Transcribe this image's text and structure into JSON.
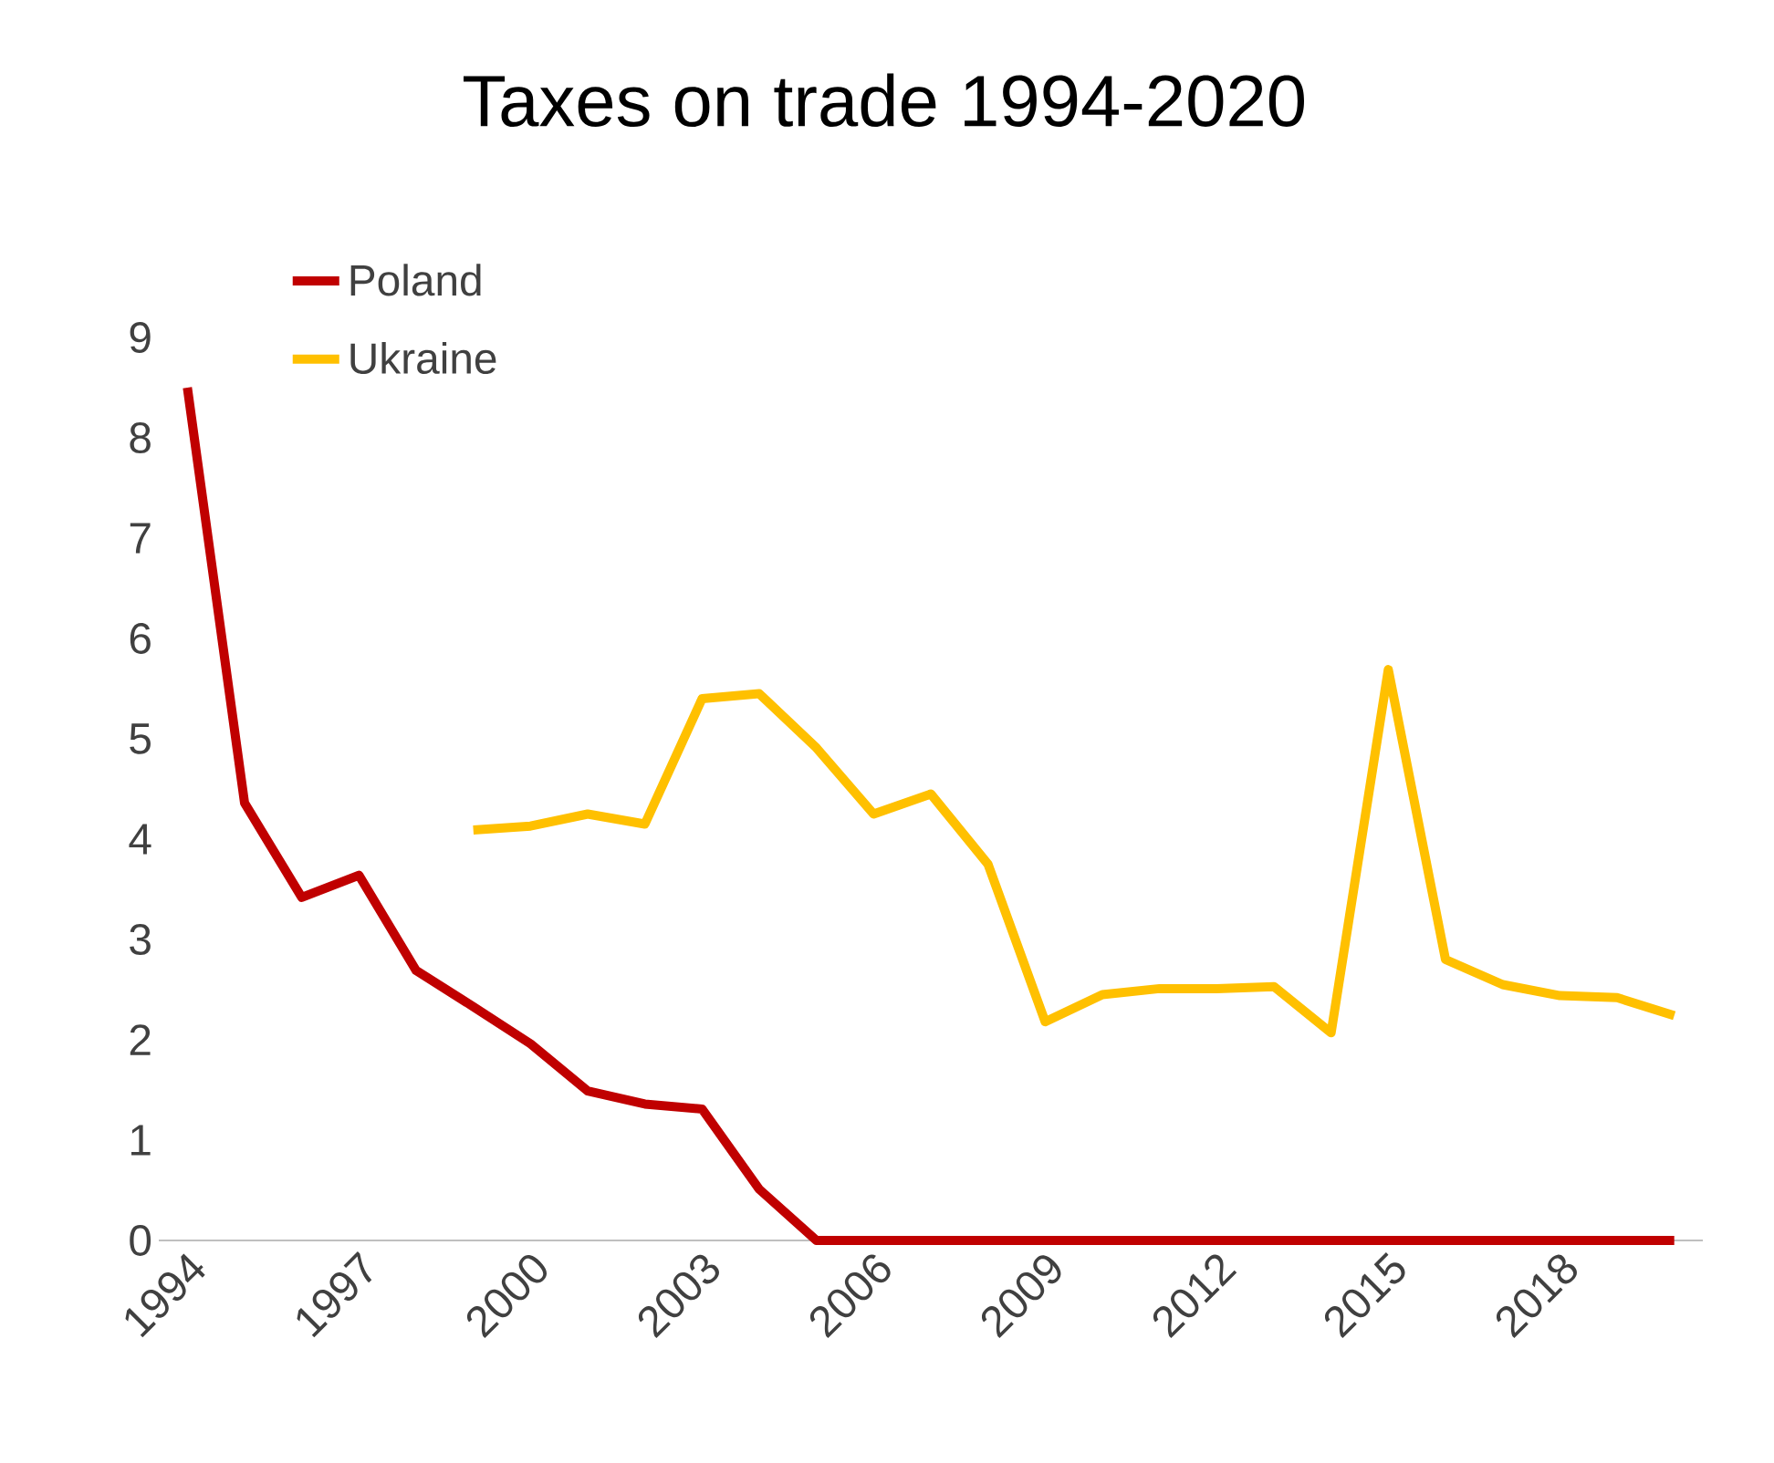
{
  "chart_data": {
    "type": "line",
    "title": "Taxes on trade 1994-2020",
    "categories": [
      "1994",
      null,
      null,
      "1997",
      null,
      null,
      "2000",
      null,
      null,
      "2003",
      null,
      null,
      "2006",
      null,
      null,
      "2009",
      null,
      null,
      "2012",
      null,
      null,
      "2015",
      null,
      null,
      "2018",
      null,
      null
    ],
    "series": [
      {
        "name": "Poland",
        "color": "#c00000",
        "values": [
          8.5,
          4.36,
          3.42,
          3.64,
          2.69,
          2.33,
          1.96,
          1.49,
          1.36,
          1.31,
          0.51,
          0,
          0,
          0,
          0,
          0,
          0,
          0,
          0,
          0,
          0,
          0,
          0,
          0,
          0,
          0,
          0
        ]
      },
      {
        "name": "Ukraine",
        "color": "#ffc000",
        "values": [
          null,
          null,
          null,
          null,
          null,
          4.09,
          4.13,
          4.25,
          4.15,
          5.4,
          5.45,
          4.91,
          4.25,
          4.45,
          3.75,
          2.18,
          2.45,
          2.51,
          2.51,
          2.53,
          2.07,
          5.69,
          2.8,
          2.55,
          2.44,
          2.42,
          2.24
        ]
      }
    ],
    "ylim": [
      0,
      9
    ],
    "yticks": [
      0,
      1,
      2,
      3,
      4,
      5,
      6,
      7,
      8,
      9
    ],
    "grid": false,
    "legend": "top left",
    "line_style": "solid",
    "marker": "none"
  }
}
